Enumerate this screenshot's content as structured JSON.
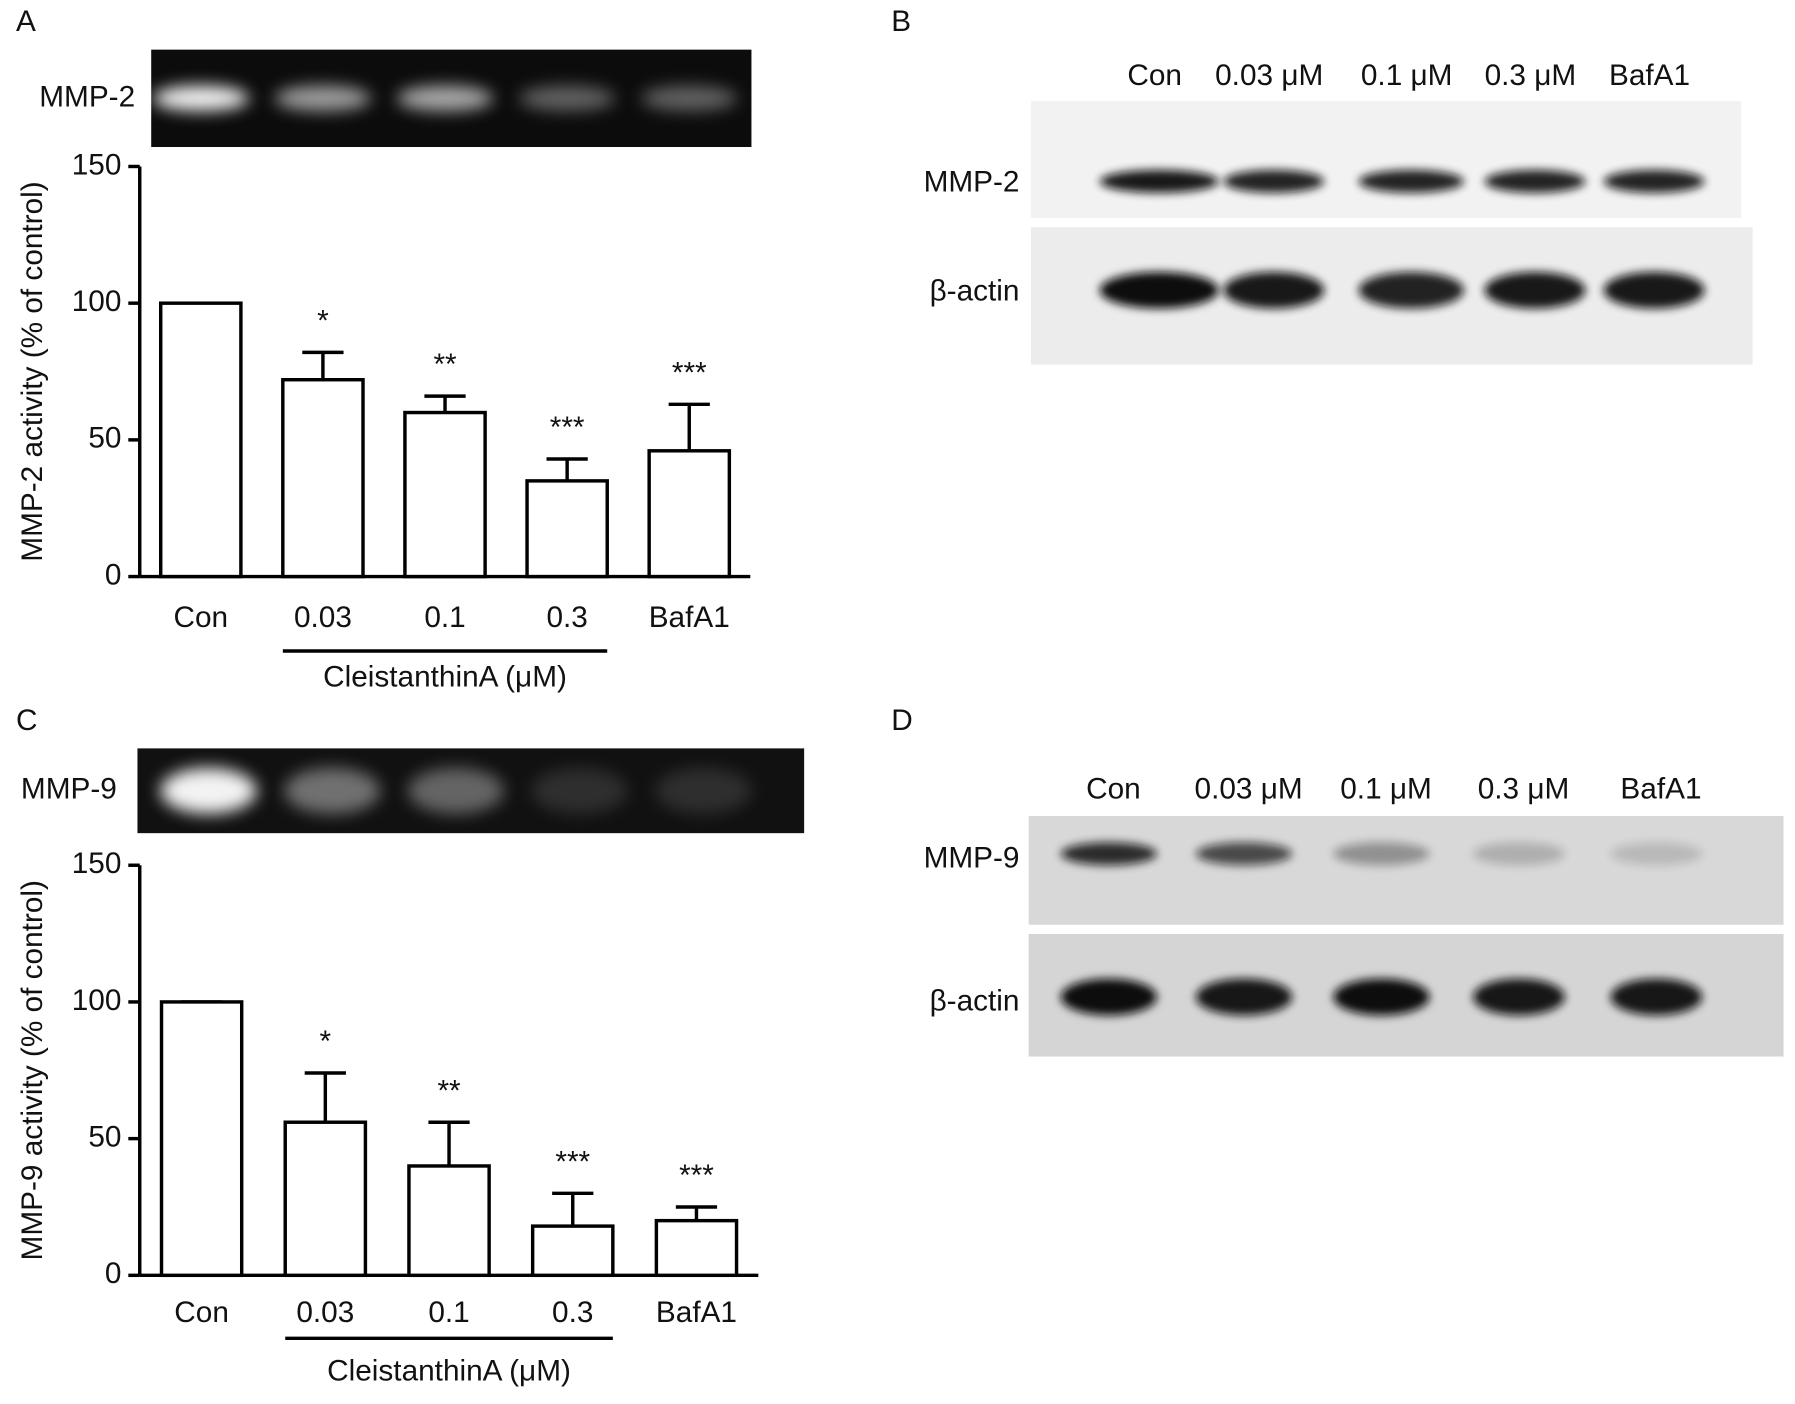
{
  "chart_data": [
    {
      "type": "bar",
      "panel": "A",
      "gel_label": "MMP-2",
      "ylabel": "MMP-2 activity (% of control)",
      "categories": [
        "Con",
        "0.03",
        "0.1",
        "0.3",
        "BafA1"
      ],
      "values": [
        100,
        72,
        60,
        35,
        46
      ],
      "errors": [
        0,
        10,
        6,
        8,
        17
      ],
      "annotations": [
        null,
        "*",
        "**",
        "***",
        "***"
      ],
      "group_label": "CleistanthinA (μM)",
      "color": "#ffffff",
      "ylim": [
        0,
        150
      ],
      "yticks": [
        0,
        50,
        100,
        150
      ]
    },
    {
      "type": "bar",
      "panel": "C",
      "gel_label": "MMP-9",
      "ylabel": "MMP-9 activity (% of control)",
      "categories": [
        "Con",
        "0.03",
        "0.1",
        "0.3",
        "BafA1"
      ],
      "values": [
        100,
        56,
        40,
        18,
        20
      ],
      "errors": [
        0,
        18,
        16,
        12,
        5
      ],
      "annotations": [
        null,
        "*",
        "**",
        "***",
        "***"
      ],
      "group_label": "CleistanthinA (μM)",
      "color": "#ffffff",
      "ylim": [
        0,
        150
      ],
      "yticks": [
        0,
        50,
        100,
        150
      ]
    }
  ],
  "blots": [
    {
      "panel": "B",
      "lanes": [
        "Con",
        "0.03 μM",
        "0.1 μM",
        "0.3 μM",
        "BafA1"
      ],
      "rows": [
        "MMP-2",
        "β-actin"
      ]
    },
    {
      "panel": "D",
      "lanes": [
        "Con",
        "0.03 μM",
        "0.1 μM",
        "0.3 μM",
        "BafA1"
      ],
      "rows": [
        "MMP-9",
        "β-actin"
      ]
    }
  ]
}
